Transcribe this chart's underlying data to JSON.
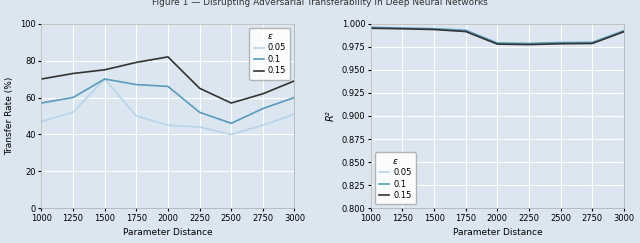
{
  "x": [
    1000,
    1250,
    1500,
    1750,
    2000,
    2250,
    2500,
    2750,
    3000
  ],
  "left_ylabel": "Transfer Rate (%)",
  "left_xlabel": "Parameter Distance",
  "left_ylim": [
    0,
    100
  ],
  "left_yticks": [
    0,
    20,
    40,
    60,
    80,
    100
  ],
  "left_series": {
    "0.05": [
      47,
      52,
      70,
      50,
      45,
      44,
      40,
      45,
      51
    ],
    "0.1": [
      57,
      60,
      70,
      67,
      66,
      52,
      46,
      54,
      60
    ],
    "0.15": [
      70,
      73,
      75,
      79,
      82,
      65,
      57,
      62,
      69
    ]
  },
  "left_colors": {
    "0.05": "#b8d4e8",
    "0.1": "#5a9aba",
    "0.15": "#333333"
  },
  "right_ylabel": "R²",
  "right_xlabel": "Parameter Distance",
  "right_ylim": [
    0.8,
    1.0
  ],
  "right_yticks": [
    0.8,
    0.825,
    0.85,
    0.875,
    0.9,
    0.925,
    0.95,
    0.975,
    1.0
  ],
  "right_series": {
    "0.05": [
      0.9955,
      0.9948,
      0.994,
      0.992,
      0.9785,
      0.978,
      0.979,
      0.9792,
      0.9918
    ],
    "0.1": [
      0.996,
      0.9952,
      0.9945,
      0.9928,
      0.979,
      0.9785,
      0.9795,
      0.9797,
      0.9922
    ],
    "0.15": [
      0.995,
      0.9944,
      0.9936,
      0.9914,
      0.9778,
      0.9773,
      0.9782,
      0.9785,
      0.9912
    ]
  },
  "right_colors": {
    "0.05": "#b8d4e8",
    "0.1": "#5a9aba",
    "0.15": "#333333"
  },
  "legend_title": "ε",
  "bg_color": "#dce6f0",
  "grid_color": "#ffffff",
  "linewidth": 1.2,
  "suptitle": "Figure 1 — Disrupting Adversarial Transferability in Deep Neural Networks"
}
